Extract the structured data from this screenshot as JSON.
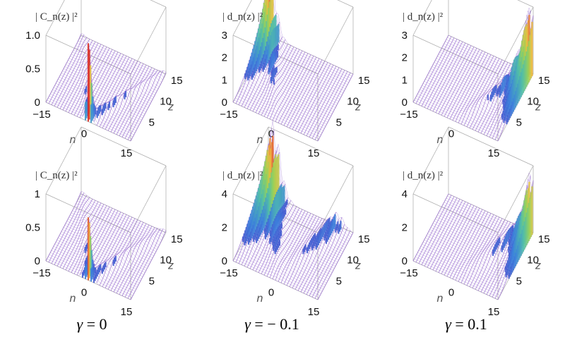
{
  "chart_data": [
    {
      "type": "surface3d",
      "title": "| C_n(z) |²",
      "title_sym": "C",
      "n_ticks": [
        "−15",
        "0",
        "15"
      ],
      "z_ticks": [
        "5",
        "10",
        "15"
      ],
      "v_ticks": [
        "0",
        "0.5",
        "1.0"
      ],
      "v_max": 1.0,
      "n_label": "n",
      "z_label": "z",
      "mode": "cond0"
    },
    {
      "type": "surface3d",
      "title": "| d_n(z) |²",
      "title_sym": "d",
      "n_ticks": [
        "−15",
        "0",
        "15"
      ],
      "z_ticks": [
        "5",
        "10",
        "15"
      ],
      "v_ticks": [
        "0",
        "1",
        "2",
        "3"
      ],
      "v_max": 3,
      "n_label": "n",
      "z_label": "z",
      "mode": "neg"
    },
    {
      "type": "surface3d",
      "title": "| d_n(z) |²",
      "title_sym": "d",
      "n_ticks": [
        "−15",
        "0",
        "15"
      ],
      "z_ticks": [
        "5",
        "10",
        "15"
      ],
      "v_ticks": [
        "0",
        "1",
        "2",
        "3"
      ],
      "v_max": 3,
      "n_label": "n",
      "z_label": "z",
      "mode": "pos"
    },
    {
      "type": "surface3d",
      "title": "| C_n(z) |²",
      "title_sym": "C",
      "n_ticks": [
        "−15",
        "0",
        "15"
      ],
      "z_ticks": [
        "5",
        "10",
        "15"
      ],
      "v_ticks": [
        "0",
        "0.5",
        "1"
      ],
      "v_max": 1,
      "n_label": "n",
      "z_label": "z",
      "mode": "cond0b"
    },
    {
      "type": "surface3d",
      "title": "| d_n(z) |²",
      "title_sym": "d",
      "n_ticks": [
        "−15",
        "0",
        "15"
      ],
      "z_ticks": [
        "5",
        "10",
        "15"
      ],
      "v_ticks": [
        "0",
        "2",
        "4"
      ],
      "v_max": 4,
      "n_label": "n",
      "z_label": "z",
      "mode": "negb"
    },
    {
      "type": "surface3d",
      "title": "| d_n(z) |²",
      "title_sym": "d",
      "n_ticks": [
        "−15",
        "0",
        "15"
      ],
      "z_ticks": [
        "5",
        "10",
        "15"
      ],
      "v_ticks": [
        "0",
        "2",
        "4"
      ],
      "v_max": 4,
      "n_label": "n",
      "z_label": "z",
      "mode": "posb"
    }
  ],
  "captions": [
    {
      "symbol": "γ",
      "rest": " = 0"
    },
    {
      "symbol": "γ",
      "rest": " = − 0.1"
    },
    {
      "symbol": "γ",
      "rest": " = 0.1"
    }
  ],
  "colors": {
    "base": "#9a6fd0",
    "box": "#a9a9a9",
    "label": "#555555"
  }
}
